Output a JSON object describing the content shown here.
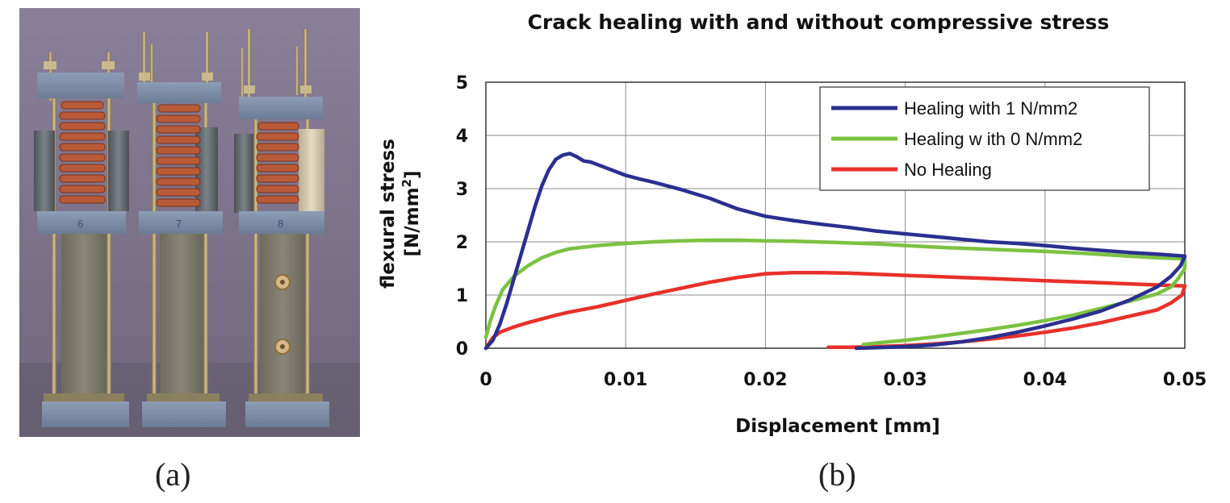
{
  "panels": {
    "a_label": "(a)",
    "b_label": "(b)",
    "photo_labels": [
      "6",
      "7",
      "8"
    ]
  },
  "chart_data": {
    "type": "line",
    "title": "Crack healing with and without compressive stress",
    "xlabel": "Displacement [mm]",
    "ylabel_line1": "flexural stress",
    "ylabel_line2": "[N/mm",
    "ylabel_sup": "2",
    "ylabel_close": "]",
    "xlim": [
      0,
      0.05
    ],
    "ylim": [
      0,
      5
    ],
    "xticks": [
      0,
      0.01,
      0.02,
      0.03,
      0.04,
      0.05
    ],
    "xtick_labels": [
      "0",
      "0.01",
      "0.02",
      "0.03",
      "0.04",
      "0.05"
    ],
    "yticks": [
      0,
      1,
      2,
      3,
      4,
      5
    ],
    "ytick_labels": [
      "0",
      "1",
      "2",
      "3",
      "4",
      "5"
    ],
    "grid": true,
    "legend_position": "top-right",
    "series": [
      {
        "name": "Healing with 1 N/mm2",
        "color": "#2b2f8f",
        "points": [
          [
            0,
            0
          ],
          [
            0.0005,
            0.15
          ],
          [
            0.001,
            0.45
          ],
          [
            0.0015,
            0.85
          ],
          [
            0.002,
            1.3
          ],
          [
            0.0025,
            1.75
          ],
          [
            0.003,
            2.2
          ],
          [
            0.0035,
            2.65
          ],
          [
            0.004,
            3.05
          ],
          [
            0.0045,
            3.35
          ],
          [
            0.005,
            3.55
          ],
          [
            0.0055,
            3.63
          ],
          [
            0.006,
            3.66
          ],
          [
            0.0065,
            3.6
          ],
          [
            0.007,
            3.52
          ],
          [
            0.0075,
            3.5
          ],
          [
            0.008,
            3.45
          ],
          [
            0.009,
            3.35
          ],
          [
            0.01,
            3.25
          ],
          [
            0.011,
            3.18
          ],
          [
            0.012,
            3.12
          ],
          [
            0.013,
            3.05
          ],
          [
            0.014,
            2.98
          ],
          [
            0.015,
            2.9
          ],
          [
            0.016,
            2.82
          ],
          [
            0.017,
            2.72
          ],
          [
            0.018,
            2.62
          ],
          [
            0.019,
            2.55
          ],
          [
            0.02,
            2.48
          ],
          [
            0.022,
            2.4
          ],
          [
            0.024,
            2.33
          ],
          [
            0.026,
            2.27
          ],
          [
            0.028,
            2.2
          ],
          [
            0.03,
            2.15
          ],
          [
            0.032,
            2.1
          ],
          [
            0.034,
            2.05
          ],
          [
            0.036,
            2.0
          ],
          [
            0.038,
            1.97
          ],
          [
            0.04,
            1.93
          ],
          [
            0.042,
            1.88
          ],
          [
            0.044,
            1.84
          ],
          [
            0.046,
            1.8
          ],
          [
            0.048,
            1.77
          ],
          [
            0.05,
            1.73
          ],
          [
            0.0497,
            1.55
          ],
          [
            0.049,
            1.35
          ],
          [
            0.048,
            1.15
          ],
          [
            0.046,
            0.9
          ],
          [
            0.044,
            0.7
          ],
          [
            0.042,
            0.55
          ],
          [
            0.04,
            0.42
          ],
          [
            0.038,
            0.3
          ],
          [
            0.036,
            0.2
          ],
          [
            0.034,
            0.12
          ],
          [
            0.032,
            0.06
          ],
          [
            0.03,
            0.03
          ],
          [
            0.028,
            0.01
          ],
          [
            0.0265,
            0.0
          ]
        ]
      },
      {
        "name": "Healing w ith 0 N/mm2",
        "color": "#7cc242",
        "points": [
          [
            0,
            0.2
          ],
          [
            0.0003,
            0.5
          ],
          [
            0.0007,
            0.8
          ],
          [
            0.0012,
            1.1
          ],
          [
            0.002,
            1.35
          ],
          [
            0.003,
            1.55
          ],
          [
            0.004,
            1.7
          ],
          [
            0.005,
            1.8
          ],
          [
            0.006,
            1.87
          ],
          [
            0.008,
            1.93
          ],
          [
            0.01,
            1.97
          ],
          [
            0.012,
            2.0
          ],
          [
            0.014,
            2.02
          ],
          [
            0.016,
            2.03
          ],
          [
            0.018,
            2.03
          ],
          [
            0.02,
            2.02
          ],
          [
            0.022,
            2.01
          ],
          [
            0.025,
            1.99
          ],
          [
            0.028,
            1.96
          ],
          [
            0.03,
            1.93
          ],
          [
            0.033,
            1.89
          ],
          [
            0.036,
            1.86
          ],
          [
            0.04,
            1.82
          ],
          [
            0.043,
            1.78
          ],
          [
            0.046,
            1.73
          ],
          [
            0.048,
            1.7
          ],
          [
            0.05,
            1.68
          ],
          [
            0.05,
            1.5
          ],
          [
            0.0495,
            1.3
          ],
          [
            0.049,
            1.15
          ],
          [
            0.048,
            1.02
          ],
          [
            0.046,
            0.88
          ],
          [
            0.044,
            0.75
          ],
          [
            0.042,
            0.62
          ],
          [
            0.04,
            0.52
          ],
          [
            0.038,
            0.43
          ],
          [
            0.036,
            0.35
          ],
          [
            0.034,
            0.28
          ],
          [
            0.032,
            0.21
          ],
          [
            0.03,
            0.15
          ],
          [
            0.028,
            0.1
          ],
          [
            0.027,
            0.07
          ]
        ]
      },
      {
        "name": "No Healing",
        "color": "#e8302a",
        "points": [
          [
            0,
            0
          ],
          [
            0.0005,
            0.2
          ],
          [
            0.001,
            0.3
          ],
          [
            0.002,
            0.4
          ],
          [
            0.003,
            0.48
          ],
          [
            0.004,
            0.55
          ],
          [
            0.005,
            0.62
          ],
          [
            0.006,
            0.68
          ],
          [
            0.007,
            0.73
          ],
          [
            0.008,
            0.78
          ],
          [
            0.009,
            0.84
          ],
          [
            0.01,
            0.9
          ],
          [
            0.012,
            1.02
          ],
          [
            0.014,
            1.13
          ],
          [
            0.016,
            1.24
          ],
          [
            0.018,
            1.33
          ],
          [
            0.02,
            1.4
          ],
          [
            0.022,
            1.42
          ],
          [
            0.024,
            1.42
          ],
          [
            0.026,
            1.41
          ],
          [
            0.028,
            1.39
          ],
          [
            0.03,
            1.37
          ],
          [
            0.032,
            1.35
          ],
          [
            0.034,
            1.33
          ],
          [
            0.036,
            1.31
          ],
          [
            0.038,
            1.29
          ],
          [
            0.04,
            1.27
          ],
          [
            0.042,
            1.25
          ],
          [
            0.044,
            1.23
          ],
          [
            0.046,
            1.21
          ],
          [
            0.048,
            1.19
          ],
          [
            0.05,
            1.17
          ],
          [
            0.0498,
            1.0
          ],
          [
            0.049,
            0.85
          ],
          [
            0.048,
            0.72
          ],
          [
            0.046,
            0.6
          ],
          [
            0.044,
            0.48
          ],
          [
            0.042,
            0.38
          ],
          [
            0.04,
            0.3
          ],
          [
            0.038,
            0.23
          ],
          [
            0.036,
            0.17
          ],
          [
            0.034,
            0.12
          ],
          [
            0.032,
            0.08
          ],
          [
            0.03,
            0.05
          ],
          [
            0.028,
            0.03
          ],
          [
            0.026,
            0.02
          ],
          [
            0.0245,
            0.02
          ]
        ]
      }
    ]
  }
}
